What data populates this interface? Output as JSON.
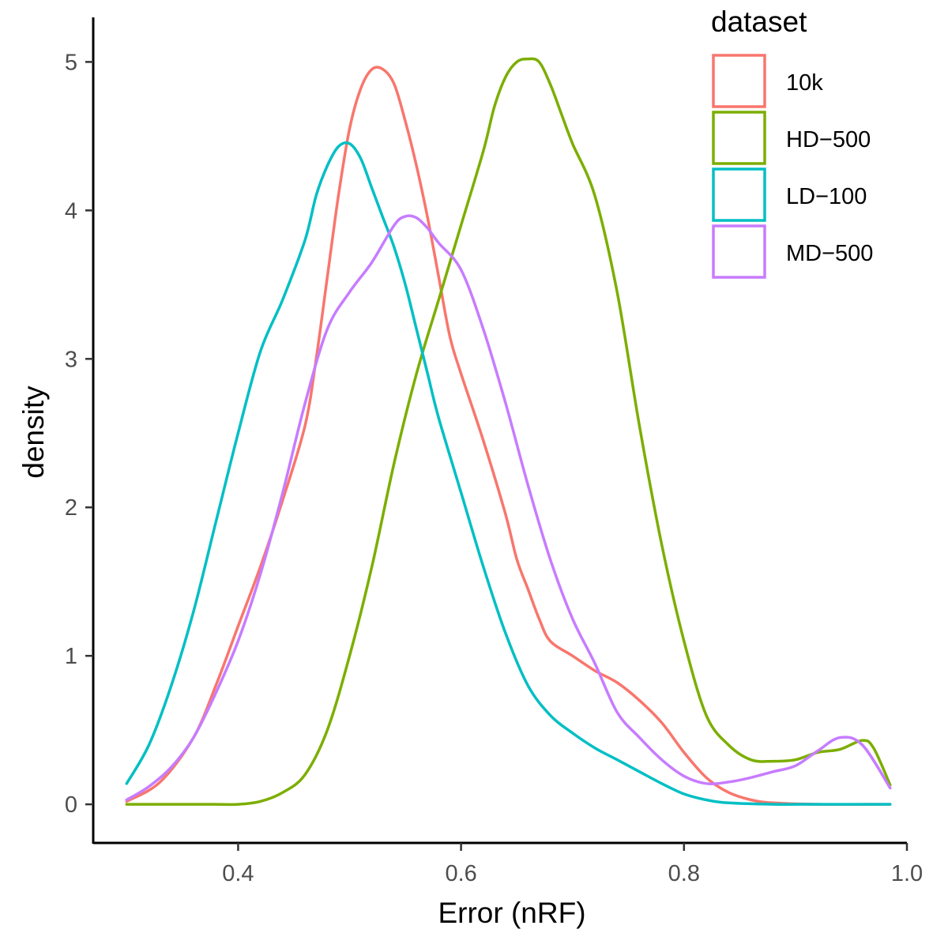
{
  "chart_data": {
    "type": "line",
    "xlabel": "Error (nRF)",
    "ylabel": "density",
    "xlim": [
      0.27,
      1.0
    ],
    "ylim": [
      -0.26,
      5.3
    ],
    "x_ticks": [
      0.4,
      0.6,
      0.8,
      1.0
    ],
    "x_tick_labels": [
      "0.4",
      "0.6",
      "0.8",
      "1.0"
    ],
    "y_ticks": [
      0,
      1,
      2,
      3,
      4,
      5
    ],
    "y_tick_labels": [
      "0",
      "1",
      "2",
      "3",
      "4",
      "5"
    ],
    "grid": false,
    "legend": {
      "title": "dataset",
      "position": "top-right",
      "entries": [
        "10k",
        "HD−500",
        "LD−100",
        "MD−500"
      ]
    },
    "series": [
      {
        "name": "10k",
        "color": "#F8766D",
        "points": [
          [
            0.3,
            0.02
          ],
          [
            0.33,
            0.15
          ],
          [
            0.36,
            0.45
          ],
          [
            0.38,
            0.8
          ],
          [
            0.4,
            1.2
          ],
          [
            0.42,
            1.6
          ],
          [
            0.44,
            2.05
          ],
          [
            0.46,
            2.55
          ],
          [
            0.47,
            3.0
          ],
          [
            0.48,
            3.55
          ],
          [
            0.49,
            4.1
          ],
          [
            0.5,
            4.55
          ],
          [
            0.51,
            4.82
          ],
          [
            0.52,
            4.95
          ],
          [
            0.53,
            4.95
          ],
          [
            0.54,
            4.85
          ],
          [
            0.55,
            4.6
          ],
          [
            0.56,
            4.3
          ],
          [
            0.57,
            3.95
          ],
          [
            0.58,
            3.55
          ],
          [
            0.59,
            3.15
          ],
          [
            0.6,
            2.9
          ],
          [
            0.62,
            2.45
          ],
          [
            0.64,
            1.95
          ],
          [
            0.65,
            1.65
          ],
          [
            0.66,
            1.45
          ],
          [
            0.67,
            1.25
          ],
          [
            0.68,
            1.1
          ],
          [
            0.7,
            1.0
          ],
          [
            0.72,
            0.9
          ],
          [
            0.74,
            0.82
          ],
          [
            0.76,
            0.7
          ],
          [
            0.78,
            0.55
          ],
          [
            0.8,
            0.35
          ],
          [
            0.82,
            0.18
          ],
          [
            0.84,
            0.08
          ],
          [
            0.86,
            0.03
          ],
          [
            0.88,
            0.01
          ],
          [
            0.92,
            0.0
          ],
          [
            0.985,
            0.0
          ]
        ]
      },
      {
        "name": "HD−500",
        "color": "#7CAE00",
        "points": [
          [
            0.3,
            0.0
          ],
          [
            0.33,
            0.0
          ],
          [
            0.36,
            0.0
          ],
          [
            0.38,
            0.0
          ],
          [
            0.4,
            0.0
          ],
          [
            0.42,
            0.02
          ],
          [
            0.44,
            0.08
          ],
          [
            0.46,
            0.2
          ],
          [
            0.48,
            0.5
          ],
          [
            0.5,
            1.0
          ],
          [
            0.52,
            1.6
          ],
          [
            0.54,
            2.3
          ],
          [
            0.56,
            2.9
          ],
          [
            0.58,
            3.4
          ],
          [
            0.6,
            3.9
          ],
          [
            0.62,
            4.4
          ],
          [
            0.63,
            4.7
          ],
          [
            0.64,
            4.9
          ],
          [
            0.65,
            5.0
          ],
          [
            0.66,
            5.02
          ],
          [
            0.67,
            5.0
          ],
          [
            0.68,
            4.85
          ],
          [
            0.69,
            4.65
          ],
          [
            0.7,
            4.45
          ],
          [
            0.72,
            4.1
          ],
          [
            0.74,
            3.45
          ],
          [
            0.76,
            2.55
          ],
          [
            0.78,
            1.75
          ],
          [
            0.8,
            1.1
          ],
          [
            0.82,
            0.6
          ],
          [
            0.84,
            0.4
          ],
          [
            0.86,
            0.3
          ],
          [
            0.88,
            0.29
          ],
          [
            0.9,
            0.3
          ],
          [
            0.92,
            0.35
          ],
          [
            0.94,
            0.37
          ],
          [
            0.96,
            0.43
          ],
          [
            0.97,
            0.38
          ],
          [
            0.985,
            0.13
          ]
        ]
      },
      {
        "name": "LD−100",
        "color": "#00BFC4",
        "points": [
          [
            0.3,
            0.14
          ],
          [
            0.32,
            0.4
          ],
          [
            0.34,
            0.8
          ],
          [
            0.36,
            1.3
          ],
          [
            0.38,
            1.9
          ],
          [
            0.4,
            2.5
          ],
          [
            0.42,
            3.05
          ],
          [
            0.44,
            3.4
          ],
          [
            0.46,
            3.8
          ],
          [
            0.47,
            4.1
          ],
          [
            0.48,
            4.3
          ],
          [
            0.49,
            4.43
          ],
          [
            0.5,
            4.45
          ],
          [
            0.51,
            4.35
          ],
          [
            0.52,
            4.15
          ],
          [
            0.53,
            3.95
          ],
          [
            0.54,
            3.75
          ],
          [
            0.55,
            3.5
          ],
          [
            0.56,
            3.2
          ],
          [
            0.57,
            2.9
          ],
          [
            0.58,
            2.6
          ],
          [
            0.6,
            2.1
          ],
          [
            0.62,
            1.6
          ],
          [
            0.64,
            1.15
          ],
          [
            0.66,
            0.8
          ],
          [
            0.68,
            0.6
          ],
          [
            0.7,
            0.48
          ],
          [
            0.72,
            0.38
          ],
          [
            0.74,
            0.3
          ],
          [
            0.76,
            0.22
          ],
          [
            0.78,
            0.14
          ],
          [
            0.8,
            0.07
          ],
          [
            0.82,
            0.03
          ],
          [
            0.84,
            0.01
          ],
          [
            0.88,
            0.0
          ],
          [
            0.92,
            0.0
          ],
          [
            0.985,
            0.0
          ]
        ]
      },
      {
        "name": "MD−500",
        "color": "#C77CFF",
        "points": [
          [
            0.3,
            0.03
          ],
          [
            0.32,
            0.12
          ],
          [
            0.34,
            0.25
          ],
          [
            0.36,
            0.45
          ],
          [
            0.38,
            0.75
          ],
          [
            0.4,
            1.1
          ],
          [
            0.42,
            1.55
          ],
          [
            0.44,
            2.1
          ],
          [
            0.46,
            2.7
          ],
          [
            0.48,
            3.2
          ],
          [
            0.5,
            3.45
          ],
          [
            0.52,
            3.65
          ],
          [
            0.54,
            3.9
          ],
          [
            0.55,
            3.96
          ],
          [
            0.56,
            3.95
          ],
          [
            0.57,
            3.88
          ],
          [
            0.58,
            3.78
          ],
          [
            0.6,
            3.6
          ],
          [
            0.62,
            3.2
          ],
          [
            0.64,
            2.7
          ],
          [
            0.66,
            2.15
          ],
          [
            0.68,
            1.65
          ],
          [
            0.7,
            1.25
          ],
          [
            0.72,
            0.95
          ],
          [
            0.74,
            0.62
          ],
          [
            0.76,
            0.45
          ],
          [
            0.78,
            0.3
          ],
          [
            0.8,
            0.19
          ],
          [
            0.82,
            0.14
          ],
          [
            0.84,
            0.15
          ],
          [
            0.86,
            0.18
          ],
          [
            0.88,
            0.22
          ],
          [
            0.9,
            0.26
          ],
          [
            0.92,
            0.36
          ],
          [
            0.94,
            0.45
          ],
          [
            0.96,
            0.4
          ],
          [
            0.985,
            0.11
          ]
        ]
      }
    ]
  }
}
